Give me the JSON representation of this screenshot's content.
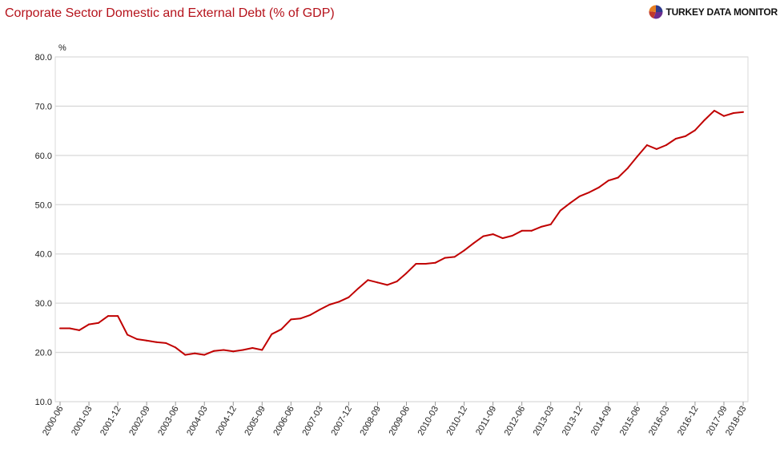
{
  "header": {
    "title": "Corporate Sector Domestic and External Debt (% of GDP)",
    "brand": "TURKEY DATA MONITOR",
    "brand_icon": "pie-logo-icon"
  },
  "colors": {
    "title": "#b5121b",
    "line": "#c00000",
    "grid": "#d9d9d9",
    "logo": [
      "#c0392b",
      "#2e3a8c",
      "#6a2d8f",
      "#e67e22"
    ]
  },
  "chart_data": {
    "type": "line",
    "title": "Corporate Sector Domestic and External Debt (% of GDP)",
    "ylabel": "%",
    "xlabel": "",
    "ylim": [
      10,
      80
    ],
    "yticks": [
      "10.0",
      "20.0",
      "30.0",
      "40.0",
      "50.0",
      "60.0",
      "70.0",
      "80.0"
    ],
    "xticks": [
      "2000-06",
      "2001-03",
      "2001-12",
      "2002-09",
      "2003-06",
      "2004-03",
      "2004-12",
      "2005-09",
      "2006-06",
      "2007-03",
      "2007-12",
      "2008-09",
      "2009-06",
      "2010-03",
      "2010-12",
      "2011-09",
      "2012-06",
      "2013-03",
      "2013-12",
      "2014-09",
      "2015-06",
      "2016-03",
      "2016-12",
      "2017-09",
      "2018-03"
    ],
    "grid": true,
    "legend": "none",
    "series": [
      {
        "x": [
          "2000-06",
          "2000-09",
          "2000-12",
          "2001-03",
          "2001-06",
          "2001-09",
          "2001-12",
          "2002-03",
          "2002-06",
          "2002-09",
          "2002-12",
          "2003-03",
          "2003-06",
          "2003-09",
          "2003-12",
          "2004-03",
          "2004-06",
          "2004-09",
          "2004-12",
          "2005-03",
          "2005-06",
          "2005-09",
          "2005-12",
          "2006-03",
          "2006-06",
          "2006-09",
          "2006-12",
          "2007-03",
          "2007-06",
          "2007-09",
          "2007-12",
          "2008-03",
          "2008-06",
          "2008-09",
          "2008-12",
          "2009-03",
          "2009-06",
          "2009-09",
          "2009-12",
          "2010-03",
          "2010-06",
          "2010-09",
          "2010-12",
          "2011-03",
          "2011-06",
          "2011-09",
          "2011-12",
          "2012-03",
          "2012-06",
          "2012-09",
          "2012-12",
          "2013-03",
          "2013-06",
          "2013-09",
          "2013-12",
          "2014-03",
          "2014-06",
          "2014-09",
          "2014-12",
          "2015-03",
          "2015-06",
          "2015-09",
          "2015-12",
          "2016-03",
          "2016-06",
          "2016-09",
          "2016-12",
          "2017-03",
          "2017-06",
          "2017-09",
          "2017-12",
          "2018-03"
        ],
        "values": [
          24.9,
          24.9,
          24.5,
          25.7,
          26.0,
          27.4,
          27.4,
          23.6,
          22.7,
          22.4,
          22.1,
          21.9,
          21.0,
          19.5,
          19.8,
          19.5,
          20.3,
          20.5,
          20.2,
          20.5,
          20.9,
          20.5,
          23.7,
          24.7,
          26.7,
          26.9,
          27.6,
          28.7,
          29.7,
          30.3,
          31.2,
          33.0,
          34.7,
          34.2,
          33.7,
          34.4,
          36.1,
          38.0,
          38.0,
          38.2,
          39.2,
          39.4,
          40.7,
          42.2,
          43.6,
          44.0,
          43.2,
          43.7,
          44.7,
          44.7,
          45.5,
          46.0,
          48.8,
          50.3,
          51.7,
          52.5,
          53.5,
          54.9,
          55.5,
          57.4,
          59.8,
          62.1,
          61.3,
          62.1,
          63.4,
          63.9,
          65.1,
          67.2,
          69.1,
          68.0,
          68.6,
          68.8
        ]
      }
    ]
  }
}
